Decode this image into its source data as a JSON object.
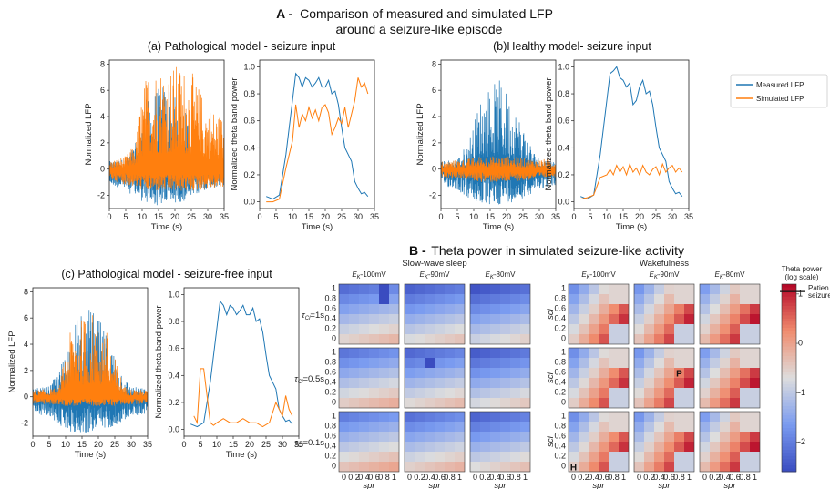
{
  "section_a": {
    "letter": "A -",
    "title_line1": "Comparison of measured and simulated LFP",
    "title_line2": "around a seizure-like episode"
  },
  "section_b": {
    "letter": "B -",
    "title": "Theta power in simulated seizure-like activity"
  },
  "legend": {
    "items": [
      "Measured LFP",
      "Simulated LFP"
    ]
  },
  "colors": {
    "measured": "#1f77b4",
    "simulated": "#ff7f0e"
  },
  "chart_data": [
    {
      "id": "a_path_lfp",
      "type": "line",
      "title": "(a) Pathological model - seizure input",
      "xlabel": "Time (s)",
      "ylabel": "Normalized LFP",
      "xlim": [
        0,
        35
      ],
      "ylim": [
        -3,
        8.3
      ],
      "xticks": [
        0,
        5,
        10,
        15,
        20,
        25,
        30,
        35
      ],
      "yticks": [
        -2,
        0,
        2,
        4,
        6,
        8
      ],
      "series": [
        {
          "name": "Measured LFP",
          "envelope": {
            "t": [
              0,
              5,
              8,
              10,
              12,
              15,
              18,
              20,
              22,
              25,
              28,
              30,
              35
            ],
            "upper": [
              0.6,
              0.8,
              2.0,
              3.5,
              5.5,
              6.5,
              6.8,
              6.0,
              5.0,
              3.5,
              1.5,
              0.8,
              0.6
            ],
            "lower": [
              -1.2,
              -1.6,
              -2.2,
              -2.5,
              -2.7,
              -2.8,
              -2.7,
              -2.6,
              -2.5,
              -2.2,
              -1.8,
              -1.5,
              -1.3
            ]
          }
        },
        {
          "name": "Simulated LFP",
          "envelope": {
            "t": [
              0,
              5,
              8,
              10,
              12,
              15,
              18,
              20,
              22,
              25,
              28,
              30,
              35
            ],
            "upper": [
              0.6,
              1.0,
              2.0,
              6.0,
              7.8,
              8.0,
              8.0,
              8.0,
              8.0,
              7.5,
              6.0,
              5.0,
              4.0
            ],
            "lower": [
              -0.8,
              -1.2,
              -1.4,
              -1.6,
              -1.7,
              -1.7,
              -1.7,
              -1.7,
              -1.7,
              -1.7,
              -1.6,
              -1.5,
              -1.5
            ]
          }
        }
      ]
    },
    {
      "id": "a_path_theta",
      "type": "line",
      "title": "",
      "xlabel": "Time (s)",
      "ylabel": "Normalized theta band power",
      "xlim": [
        0,
        35
      ],
      "ylim": [
        -0.05,
        1.05
      ],
      "xticks": [
        0,
        5,
        10,
        15,
        20,
        25,
        30,
        35
      ],
      "yticks": [
        0.0,
        0.2,
        0.4,
        0.6,
        0.8,
        1.0
      ],
      "series": [
        {
          "name": "Measured LFP",
          "x": [
            2,
            4,
            6,
            8,
            10,
            11,
            12,
            13,
            14,
            15,
            16,
            17,
            18,
            19,
            20,
            21,
            22,
            23,
            24,
            25,
            26,
            27,
            28,
            29,
            30,
            31,
            32,
            33
          ],
          "y": [
            0.04,
            0.02,
            0.05,
            0.35,
            0.75,
            0.95,
            0.92,
            0.85,
            0.92,
            0.9,
            0.85,
            0.88,
            0.92,
            0.85,
            0.85,
            0.9,
            0.8,
            0.82,
            0.72,
            0.55,
            0.4,
            0.35,
            0.3,
            0.15,
            0.1,
            0.06,
            0.07,
            0.04
          ]
        },
        {
          "name": "Simulated LFP",
          "x": [
            2,
            4,
            6,
            8,
            10,
            11,
            12,
            13,
            14,
            15,
            16,
            17,
            18,
            19,
            20,
            21,
            22,
            23,
            24,
            25,
            26,
            27,
            28,
            29,
            30,
            31,
            32,
            33
          ],
          "y": [
            0.0,
            0.0,
            0.02,
            0.25,
            0.45,
            0.72,
            0.55,
            0.65,
            0.6,
            0.7,
            0.62,
            0.68,
            0.6,
            0.7,
            0.72,
            0.66,
            0.5,
            0.55,
            0.62,
            0.58,
            0.7,
            0.55,
            0.65,
            0.75,
            0.92,
            0.85,
            0.88,
            0.8
          ]
        }
      ]
    },
    {
      "id": "a_healthy_lfp",
      "type": "line",
      "title": "(b)Healthy model- seizure input",
      "xlabel": "Time (s)",
      "ylabel": "Normalized LFP",
      "xlim": [
        0,
        35
      ],
      "ylim": [
        -3,
        8.3
      ],
      "xticks": [
        0,
        5,
        10,
        15,
        20,
        25,
        30,
        35
      ],
      "yticks": [
        -2,
        0,
        2,
        4,
        6,
        8
      ],
      "series": [
        {
          "name": "Measured LFP",
          "envelope": {
            "t": [
              0,
              5,
              8,
              10,
              12,
              15,
              18,
              20,
              22,
              25,
              28,
              30,
              35
            ],
            "upper": [
              0.6,
              0.8,
              2.0,
              3.5,
              5.5,
              6.5,
              6.8,
              6.0,
              5.0,
              3.5,
              1.5,
              0.8,
              0.6
            ],
            "lower": [
              -1.2,
              -1.6,
              -2.2,
              -2.5,
              -2.7,
              -2.8,
              -2.7,
              -2.6,
              -2.5,
              -2.2,
              -1.8,
              -1.5,
              -1.3
            ]
          }
        },
        {
          "name": "Simulated LFP",
          "envelope": {
            "t": [
              0,
              5,
              8,
              10,
              12,
              15,
              18,
              20,
              22,
              25,
              28,
              30,
              35
            ],
            "upper": [
              0.6,
              0.7,
              0.8,
              0.9,
              1.0,
              1.0,
              1.0,
              1.0,
              1.0,
              0.9,
              0.8,
              0.8,
              0.7
            ],
            "lower": [
              -0.6,
              -0.7,
              -0.8,
              -0.9,
              -1.0,
              -1.0,
              -1.0,
              -1.0,
              -0.9,
              -0.9,
              -0.8,
              -0.7,
              -0.6
            ]
          }
        }
      ]
    },
    {
      "id": "a_healthy_theta",
      "type": "line",
      "title": "",
      "xlabel": "Time (s)",
      "ylabel": "Normalized theta band power",
      "xlim": [
        0,
        35
      ],
      "ylim": [
        -0.05,
        1.05
      ],
      "xticks": [
        0,
        5,
        10,
        15,
        20,
        25,
        30,
        35
      ],
      "yticks": [
        0.0,
        0.2,
        0.4,
        0.6,
        0.8,
        1.0
      ],
      "series": [
        {
          "name": "Measured LFP",
          "x": [
            2,
            4,
            6,
            8,
            10,
            11,
            12,
            13,
            14,
            15,
            16,
            17,
            18,
            19,
            20,
            21,
            22,
            23,
            24,
            25,
            26,
            27,
            28,
            29,
            30,
            31,
            32,
            33
          ],
          "y": [
            0.04,
            0.02,
            0.05,
            0.35,
            0.75,
            0.95,
            0.97,
            1.0,
            0.92,
            0.9,
            0.85,
            0.88,
            0.72,
            0.75,
            0.85,
            0.9,
            0.8,
            0.82,
            0.72,
            0.55,
            0.4,
            0.35,
            0.3,
            0.15,
            0.1,
            0.06,
            0.07,
            0.04
          ]
        },
        {
          "name": "Simulated LFP",
          "x": [
            2,
            4,
            6,
            8,
            10,
            11,
            12,
            13,
            14,
            15,
            16,
            17,
            18,
            19,
            20,
            21,
            22,
            23,
            24,
            25,
            26,
            27,
            28,
            29,
            30,
            31,
            32,
            33
          ],
          "y": [
            0.02,
            0.03,
            0.05,
            0.18,
            0.2,
            0.24,
            0.2,
            0.27,
            0.22,
            0.26,
            0.2,
            0.28,
            0.22,
            0.25,
            0.2,
            0.27,
            0.22,
            0.2,
            0.24,
            0.26,
            0.2,
            0.28,
            0.22,
            0.25,
            0.27,
            0.22,
            0.25,
            0.22
          ]
        }
      ]
    },
    {
      "id": "c_lfp",
      "type": "line",
      "title": "(c) Pathological model - seizure-free input",
      "xlabel": "Time (s)",
      "ylabel": "Normalized LFP",
      "xlim": [
        0,
        35
      ],
      "ylim": [
        -3,
        8.3
      ],
      "xticks": [
        0,
        5,
        10,
        15,
        20,
        25,
        30,
        35
      ],
      "yticks": [
        -2,
        0,
        2,
        4,
        6,
        8
      ],
      "series": [
        {
          "name": "Measured LFP",
          "envelope": {
            "t": [
              0,
              5,
              8,
              10,
              12,
              15,
              18,
              20,
              22,
              25,
              28,
              30,
              35
            ],
            "upper": [
              0.6,
              0.8,
              2.0,
              3.5,
              5.5,
              6.5,
              6.8,
              6.0,
              5.0,
              3.5,
              1.5,
              0.8,
              0.6
            ],
            "lower": [
              -1.2,
              -1.6,
              -2.2,
              -2.5,
              -2.7,
              -2.8,
              -2.7,
              -2.6,
              -2.5,
              -2.2,
              -1.8,
              -1.5,
              -1.3
            ]
          }
        },
        {
          "name": "Simulated LFP",
          "envelope": {
            "t": [
              0,
              5,
              8,
              10,
              12,
              15,
              18,
              20,
              22,
              25,
              28,
              30,
              35
            ],
            "upper": [
              0.5,
              0.6,
              0.7,
              3.5,
              5.5,
              6.0,
              6.5,
              6.0,
              5.5,
              3.0,
              0.8,
              0.6,
              0.5
            ],
            "lower": [
              -0.5,
              -0.6,
              -0.6,
              -0.7,
              -0.7,
              -0.7,
              -0.7,
              -0.7,
              -0.7,
              -0.7,
              -0.6,
              -0.6,
              -0.5
            ]
          }
        }
      ]
    },
    {
      "id": "c_theta",
      "type": "line",
      "title": "",
      "xlabel": "Time (s)",
      "ylabel": "Normalized theta band power",
      "xlim": [
        0,
        35
      ],
      "ylim": [
        -0.05,
        1.05
      ],
      "xticks": [
        0,
        5,
        10,
        15,
        20,
        25,
        30,
        35
      ],
      "yticks": [
        0.0,
        0.2,
        0.4,
        0.6,
        0.8,
        1.0
      ],
      "series": [
        {
          "name": "Measured LFP",
          "x": [
            2,
            4,
            6,
            8,
            10,
            11,
            12,
            13,
            14,
            15,
            16,
            17,
            18,
            19,
            20,
            21,
            22,
            23,
            24,
            25,
            26,
            27,
            28,
            29,
            30,
            31,
            32,
            33
          ],
          "y": [
            0.04,
            0.02,
            0.05,
            0.35,
            0.75,
            0.95,
            0.92,
            0.85,
            0.92,
            0.9,
            0.85,
            0.88,
            0.92,
            0.85,
            0.85,
            0.9,
            0.8,
            0.82,
            0.72,
            0.55,
            0.4,
            0.35,
            0.3,
            0.15,
            0.1,
            0.06,
            0.07,
            0.04
          ]
        },
        {
          "name": "Simulated LFP",
          "x": [
            3,
            4,
            5,
            6,
            7,
            8,
            9,
            10,
            12,
            14,
            16,
            18,
            20,
            22,
            24,
            26,
            28,
            30,
            31,
            32,
            33
          ],
          "y": [
            0.1,
            0.05,
            0.45,
            0.45,
            0.25,
            0.05,
            0.03,
            0.05,
            0.08,
            0.05,
            0.05,
            0.08,
            0.05,
            0.05,
            0.02,
            0.05,
            0.2,
            0.1,
            0.25,
            0.15,
            0.1
          ]
        }
      ]
    },
    {
      "id": "b_heatmaps",
      "type": "heatmap",
      "groups": [
        "Slow-wave sleep",
        "Wakefulness"
      ],
      "columns": [
        "-100mV",
        "-90mV",
        "-80mV"
      ],
      "rows": [
        "=1s",
        "=0.5s",
        "=0.1s"
      ],
      "xlabel": "spr",
      "ylabel": "scl",
      "xticks": [
        "0",
        "0.2",
        "0.4",
        "0.6",
        "0.8",
        "1"
      ],
      "yticks": [
        "1",
        "0.8",
        "0.6",
        "0.4",
        "0.2",
        "0"
      ],
      "colorbar": {
        "label_line1": "Theta power",
        "label_line2": "(log scale)",
        "ticks": [
          "1",
          "0",
          "-1",
          "-2"
        ],
        "range": [
          -2.6,
          1.2
        ],
        "marker_label_line1": "Patien",
        "marker_label_line2": "seizure",
        "marker_value": 1.05
      },
      "annotations": [
        {
          "text": "P",
          "group": "Wakefulness",
          "row": 1,
          "col": 1
        },
        {
          "text": "H",
          "group": "Wakefulness",
          "row": 2,
          "col": 0
        }
      ],
      "symbol_tau": "τ",
      "symbol_cl": "Cl",
      "symbol_ek": "E",
      "symbol_k": "K"
    }
  ]
}
